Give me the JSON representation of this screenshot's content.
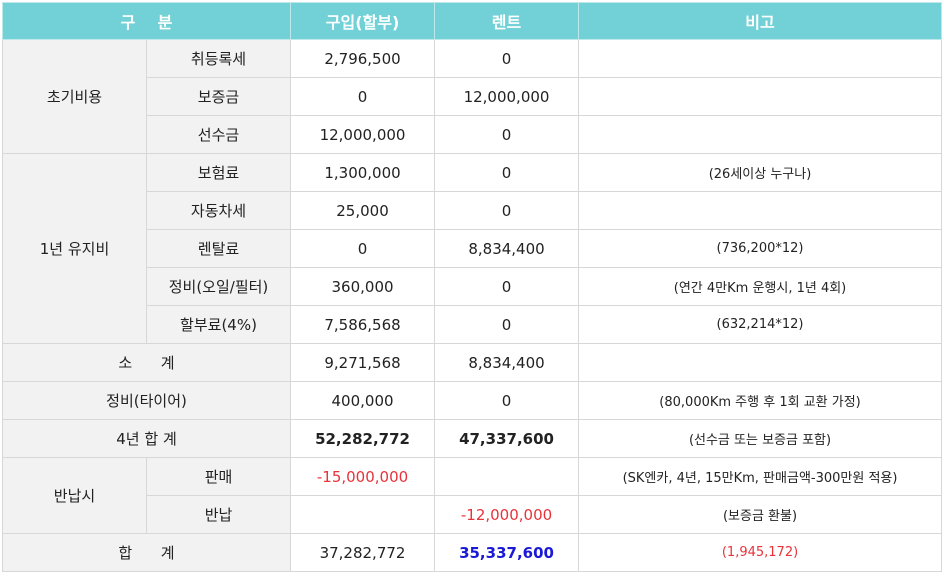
{
  "header": {
    "category": "구    분",
    "purchase": "구입(할부)",
    "rent": "렌트",
    "note": "비고"
  },
  "initial_costs": {
    "group": "초기비용",
    "rows": [
      {
        "item": "취등록세",
        "purchase": "2,796,500",
        "rent": "0",
        "note": ""
      },
      {
        "item": "보증금",
        "purchase": "0",
        "rent": "12,000,000",
        "note": ""
      },
      {
        "item": "선수금",
        "purchase": "12,000,000",
        "rent": "0",
        "note": ""
      }
    ]
  },
  "annual_costs": {
    "group": "1년 유지비",
    "rows": [
      {
        "item": "보험료",
        "purchase": "1,300,000",
        "rent": "0",
        "note": "(26세이상 누구나)"
      },
      {
        "item": "자동차세",
        "purchase": "25,000",
        "rent": "0",
        "note": ""
      },
      {
        "item": "렌탈료",
        "purchase": "0",
        "rent": "8,834,400",
        "note": "(736,200*12)"
      },
      {
        "item": "정비(오일/필터)",
        "purchase": "360,000",
        "rent": "0",
        "note": "(연간 4만Km 운행시, 1년 4회)"
      },
      {
        "item": "할부료(4%)",
        "purchase": "7,586,568",
        "rent": "0",
        "note": "(632,214*12)"
      }
    ]
  },
  "subtotal": {
    "label": "소      계",
    "purchase": "9,271,568",
    "rent": "8,834,400",
    "note": ""
  },
  "tire": {
    "label": "정비(타이어)",
    "purchase": "400,000",
    "rent": "0",
    "note": "(80,000Km 주행 후 1회 교환 가정)"
  },
  "four_year": {
    "label": "4년 합 계",
    "purchase": "52,282,772",
    "rent": "47,337,600",
    "note": "(선수금 또는 보증금 포함)"
  },
  "return": {
    "group": "반납시",
    "rows": [
      {
        "item": "판매",
        "purchase": "-15,000,000",
        "rent": "",
        "note": "(SK엔카, 4년, 15만Km, 판매금액-300만원 적용)"
      },
      {
        "item": "반납",
        "purchase": "",
        "rent": "-12,000,000",
        "note": "(보증금 환불)"
      }
    ]
  },
  "total": {
    "label": "합      계",
    "purchase": "37,282,772",
    "rent": "35,337,600",
    "note": "(1,945,172)"
  },
  "colors": {
    "header_bg": "#72d1d6",
    "label_bg": "#f2f2f2",
    "negative": "#e8333a",
    "highlight": "#1a1ad6"
  }
}
